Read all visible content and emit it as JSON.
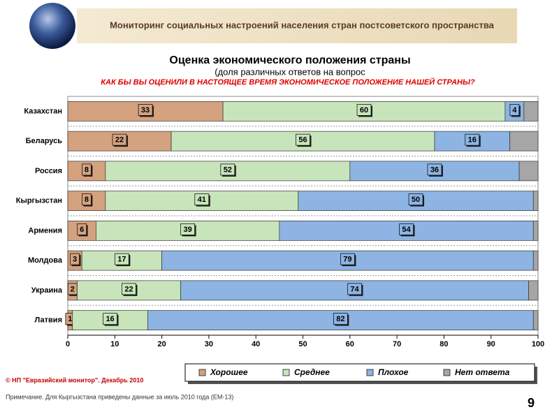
{
  "header": {
    "title": "Мониторинг социальных настроений населения стран постсоветского пространства"
  },
  "chart_data": {
    "type": "bar",
    "orientation": "horizontal",
    "stacked": true,
    "title": "Оценка экономического положения страны",
    "subtitle": "(доля различных ответов на вопрос",
    "question": "КАК БЫ ВЫ ОЦЕНИЛИ В НАСТОЯЩЕЕ ВРЕМЯ ЭКОНОМИЧЕСКОЕ ПОЛОЖЕНИЕ НАШЕЙ СТРАНЫ?",
    "categories": [
      "Казахстан",
      "Беларусь",
      "Россия",
      "Кыргызстан",
      "Армения",
      "Молдова",
      "Украина",
      "Латвия"
    ],
    "series": [
      {
        "name": "Хорошее",
        "color": "#d4a27f",
        "labels": true,
        "values": [
          33,
          22,
          8,
          8,
          6,
          3,
          2,
          1
        ]
      },
      {
        "name": "Среднее",
        "color": "#c8e4bb",
        "labels": true,
        "values": [
          60,
          56,
          52,
          41,
          39,
          17,
          22,
          16
        ]
      },
      {
        "name": "Плохое",
        "color": "#8db4e2",
        "labels": true,
        "values": [
          4,
          16,
          36,
          50,
          54,
          79,
          74,
          82
        ]
      },
      {
        "name": "Нет ответа",
        "color": "#a6a6a6",
        "labels": false,
        "values": [
          3,
          6,
          4,
          1,
          1,
          1,
          2,
          1
        ]
      }
    ],
    "xlim": [
      0,
      100
    ],
    "xticks": [
      0,
      10,
      20,
      30,
      40,
      50,
      60,
      70,
      80,
      90,
      100
    ]
  },
  "footer": {
    "copyright": "© НП \"Евразийский монитор\". Декабрь 2010",
    "note": "Примечание. Для Кыргызстана приведены данные за июль 2010 года (ЕМ-13)",
    "page": "9"
  }
}
